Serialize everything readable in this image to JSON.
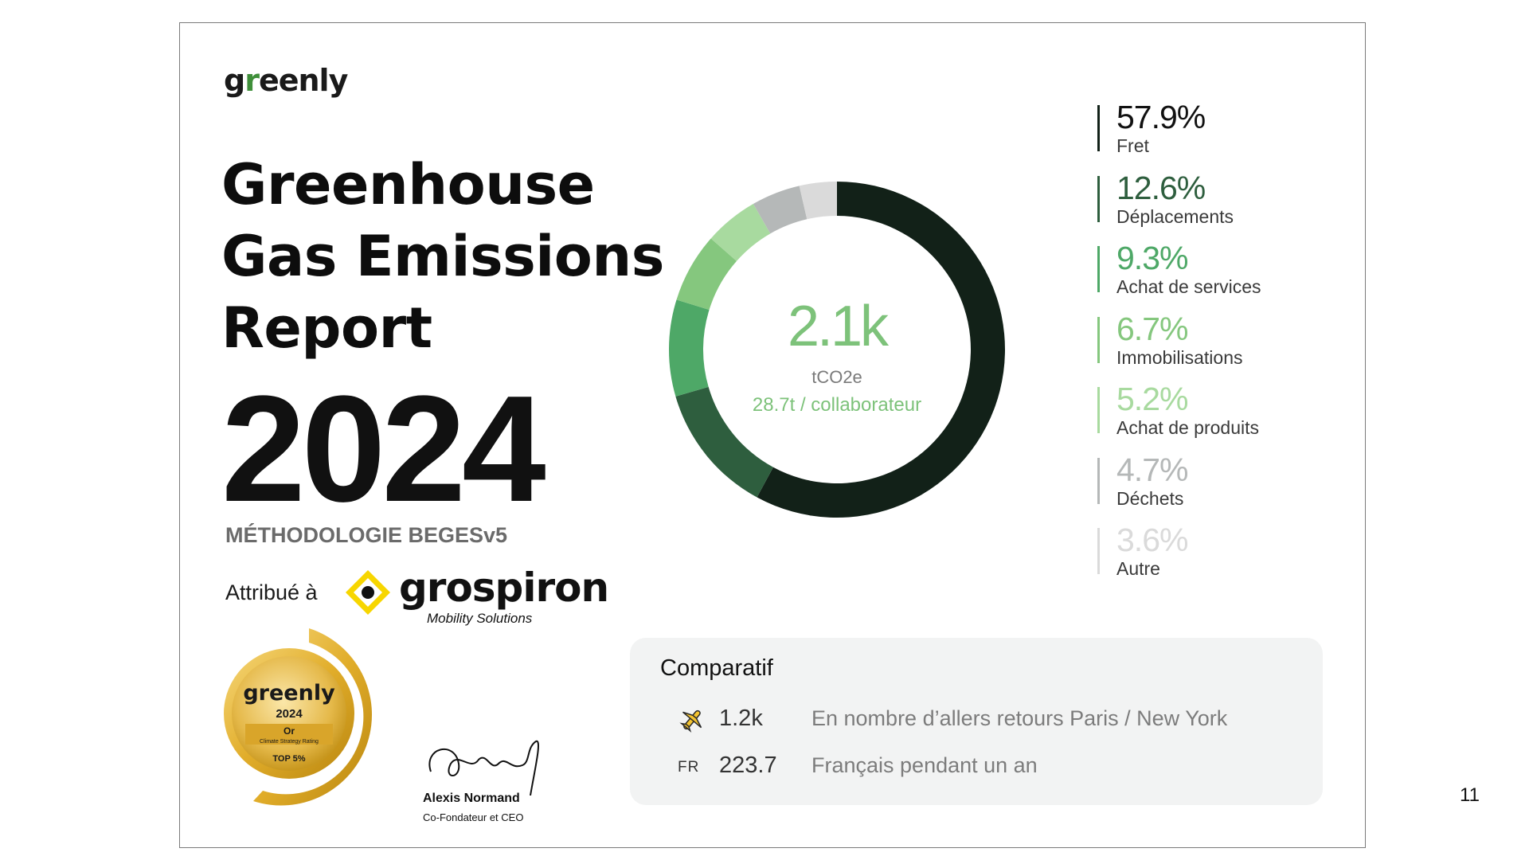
{
  "logo": {
    "prefix": "g",
    "leaf": "r",
    "suffix": "eenly"
  },
  "title": {
    "line1": "Greenhouse",
    "line2": "Gas Emissions",
    "line3": "Report",
    "year": "2024"
  },
  "methodology": "MÉTHODOLOGIE BEGESv5",
  "attributed": {
    "label": "Attribué à",
    "company": "grospiron",
    "company_tagline": "Mobility Solutions"
  },
  "medal": {
    "brand": "greenly",
    "year": "2024",
    "level": "Or",
    "caption": "Climate Strategy Rating",
    "rank": "TOP 5%"
  },
  "signature": {
    "name": "Alexis Normand",
    "role": "Co-Fondateur et CEO"
  },
  "total": {
    "value": "2.1k",
    "unit": "tCO2e",
    "per_employee": "28.7t / collaborateur"
  },
  "chart_data": {
    "type": "pie",
    "donut": true,
    "categories": [
      "Fret",
      "Déplacements",
      "Achat de services",
      "Immobilisations",
      "Achat de produits",
      "Déchets",
      "Autre"
    ],
    "values": [
      57.9,
      12.6,
      9.3,
      6.7,
      5.2,
      4.7,
      3.6
    ],
    "labels": [
      "57.9%",
      "12.6%",
      "9.3%",
      "6.7%",
      "5.2%",
      "4.7%",
      "3.6%"
    ],
    "colors": [
      "#122118",
      "#2e5e3e",
      "#4ea867",
      "#85c77e",
      "#a8da9f",
      "#b5b8b8",
      "#dadada"
    ],
    "legend_position": "right"
  },
  "comparison": {
    "title": "Comparatif",
    "rows": [
      {
        "icon": "airplane-icon",
        "value": "1.2k",
        "desc": "En nombre d’allers retours Paris / New York"
      },
      {
        "icon_text": "FR",
        "value": "223.7",
        "desc": "Français pendant un an"
      }
    ]
  },
  "page_number": "11"
}
